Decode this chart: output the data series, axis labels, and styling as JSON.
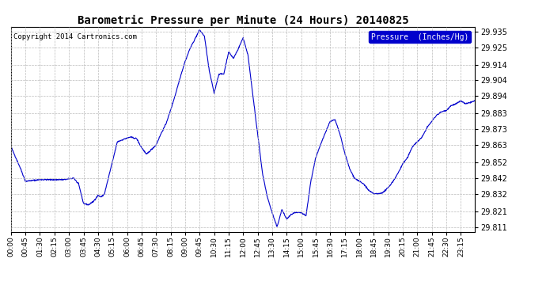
{
  "title": "Barometric Pressure per Minute (24 Hours) 20140825",
  "copyright": "Copyright 2014 Cartronics.com",
  "legend_label": "Pressure  (Inches/Hg)",
  "legend_color": "#0000cc",
  "line_color": "#0000cc",
  "bg_color": "#ffffff",
  "plot_bg_color": "#ffffff",
  "grid_color": "#bbbbbb",
  "ylim": [
    29.808,
    29.938
  ],
  "yticks": [
    29.811,
    29.821,
    29.832,
    29.842,
    29.852,
    29.863,
    29.873,
    29.883,
    29.894,
    29.904,
    29.914,
    29.925,
    29.935
  ],
  "xtick_labels": [
    "00:00",
    "00:45",
    "01:30",
    "02:15",
    "03:00",
    "03:45",
    "04:30",
    "05:15",
    "06:00",
    "06:45",
    "07:30",
    "08:15",
    "09:00",
    "09:45",
    "10:30",
    "11:15",
    "12:00",
    "12:45",
    "13:30",
    "14:15",
    "15:00",
    "15:45",
    "16:30",
    "17:15",
    "18:00",
    "18:45",
    "19:30",
    "20:15",
    "21:00",
    "21:45",
    "22:30",
    "23:15"
  ]
}
